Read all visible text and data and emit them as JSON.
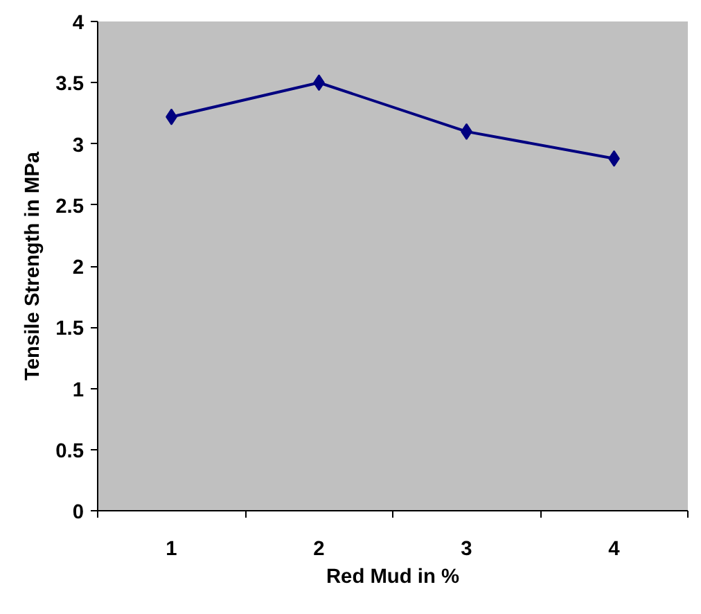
{
  "chart_data": {
    "type": "line",
    "xlabel": "Red Mud in %",
    "ylabel": "Tensile Strength in MPa",
    "categories": [
      "1",
      "2",
      "3",
      "4"
    ],
    "series": [
      {
        "color": "#000080",
        "values": [
          3.22,
          3.5,
          3.1,
          2.88
        ]
      }
    ],
    "ylim": [
      0,
      4
    ],
    "yticks": [
      0,
      0.5,
      1,
      1.5,
      2,
      2.5,
      3,
      3.5,
      4
    ],
    "grid": false,
    "marker": "diamond",
    "line_style": "solid"
  }
}
